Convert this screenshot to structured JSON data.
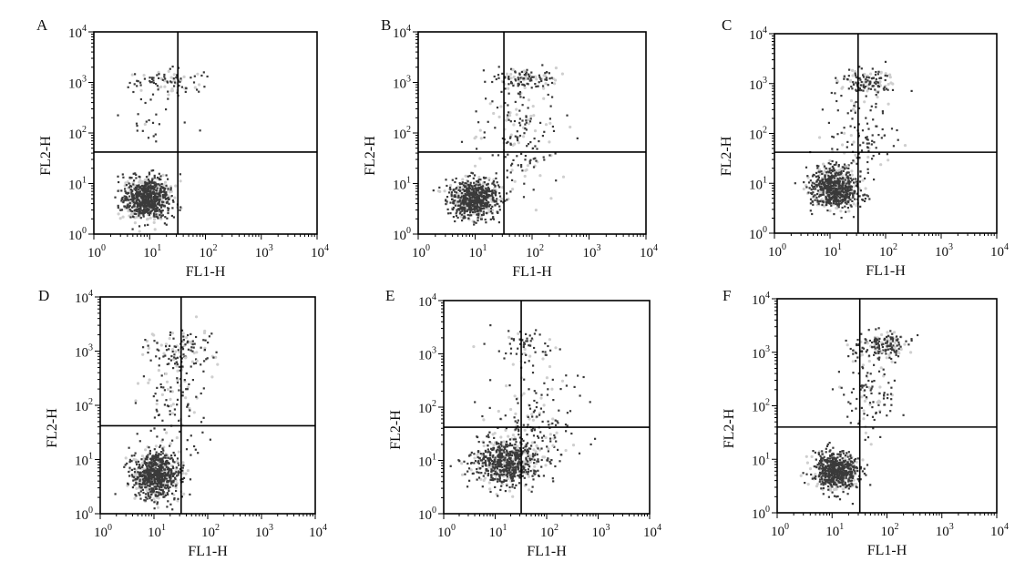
{
  "chart_data": [
    {
      "panel": "A",
      "type": "scatter",
      "xlabel": "FL1-H",
      "ylabel": "FL2-H",
      "xscale": "log",
      "yscale": "log",
      "xlim": [
        1,
        10000
      ],
      "ylim": [
        1,
        10000
      ],
      "quadrant_gate": {
        "x": 32,
        "y": 42
      },
      "x_ticks": [
        "10^0",
        "10^1",
        "10^2",
        "10^3",
        "10^4"
      ],
      "y_ticks": [
        "10^0",
        "10^1",
        "10^2",
        "10^3",
        "10^4"
      ],
      "clusters": [
        {
          "cx": 9,
          "cy": 5,
          "sx": 0.22,
          "sy": 0.2,
          "n": 900
        },
        {
          "cx": 22,
          "cy": 1000,
          "sx": 0.35,
          "sy": 0.12,
          "n": 90
        },
        {
          "cx": 12,
          "cy": 150,
          "sx": 0.25,
          "sy": 0.35,
          "n": 25
        }
      ]
    },
    {
      "panel": "B",
      "type": "scatter",
      "xlabel": "FL1-H",
      "ylabel": "FL2-H",
      "xscale": "log",
      "yscale": "log",
      "xlim": [
        1,
        10000
      ],
      "ylim": [
        1,
        10000
      ],
      "quadrant_gate": {
        "x": 32,
        "y": 42
      },
      "x_ticks": [
        "10^0",
        "10^1",
        "10^2",
        "10^3",
        "10^4"
      ],
      "y_ticks": [
        "10^0",
        "10^1",
        "10^2",
        "10^3",
        "10^4"
      ],
      "clusters": [
        {
          "cx": 10,
          "cy": 5,
          "sx": 0.22,
          "sy": 0.2,
          "n": 750
        },
        {
          "cx": 80,
          "cy": 1200,
          "sx": 0.3,
          "sy": 0.12,
          "n": 120
        },
        {
          "cx": 60,
          "cy": 80,
          "sx": 0.35,
          "sy": 0.55,
          "n": 170
        }
      ]
    },
    {
      "panel": "C",
      "type": "scatter",
      "xlabel": "FL1-H",
      "ylabel": "FL2-H",
      "xscale": "log",
      "yscale": "log",
      "xlim": [
        1,
        10000
      ],
      "ylim": [
        1,
        10000
      ],
      "quadrant_gate": {
        "x": 32,
        "y": 42
      },
      "x_ticks": [
        "10^0",
        "10^1",
        "10^2",
        "10^3",
        "10^4"
      ],
      "y_ticks": [
        "10^0",
        "10^1",
        "10^2",
        "10^3",
        "10^4"
      ],
      "clusters": [
        {
          "cx": 12,
          "cy": 8,
          "sx": 0.22,
          "sy": 0.22,
          "n": 750
        },
        {
          "cx": 50,
          "cy": 1100,
          "sx": 0.25,
          "sy": 0.13,
          "n": 130
        },
        {
          "cx": 35,
          "cy": 100,
          "sx": 0.3,
          "sy": 0.5,
          "n": 120
        }
      ]
    },
    {
      "panel": "D",
      "type": "scatter",
      "xlabel": "FL1-H",
      "ylabel": "FL2-H",
      "xscale": "log",
      "yscale": "log",
      "xlim": [
        1,
        10000
      ],
      "ylim": [
        1,
        10000
      ],
      "quadrant_gate": {
        "x": 32,
        "y": 42
      },
      "x_ticks": [
        "10^0",
        "10^1",
        "10^2",
        "10^3",
        "10^4"
      ],
      "y_ticks": [
        "10^0",
        "10^1",
        "10^2",
        "10^3",
        "10^4"
      ],
      "clusters": [
        {
          "cx": 11,
          "cy": 5,
          "sx": 0.22,
          "sy": 0.22,
          "n": 850
        },
        {
          "cx": 30,
          "cy": 1000,
          "sx": 0.3,
          "sy": 0.2,
          "n": 120
        },
        {
          "cx": 25,
          "cy": 120,
          "sx": 0.3,
          "sy": 0.5,
          "n": 120
        }
      ]
    },
    {
      "panel": "E",
      "type": "scatter",
      "xlabel": "FL1-H",
      "ylabel": "FL2-H",
      "xscale": "log",
      "yscale": "log",
      "xlim": [
        1,
        10000
      ],
      "ylim": [
        1,
        10000
      ],
      "quadrant_gate": {
        "x": 32,
        "y": 42
      },
      "x_ticks": [
        "10^0",
        "10^1",
        "10^2",
        "10^3",
        "10^4"
      ],
      "y_ticks": [
        "10^0",
        "10^1",
        "10^2",
        "10^3",
        "10^4"
      ],
      "clusters": [
        {
          "cx": 18,
          "cy": 9,
          "sx": 0.32,
          "sy": 0.22,
          "n": 750
        },
        {
          "cx": 35,
          "cy": 1500,
          "sx": 0.35,
          "sy": 0.15,
          "n": 60
        },
        {
          "cx": 60,
          "cy": 60,
          "sx": 0.45,
          "sy": 0.5,
          "n": 170
        }
      ]
    },
    {
      "panel": "F",
      "type": "scatter",
      "xlabel": "FL1-H",
      "ylabel": "FL2-H",
      "xscale": "log",
      "yscale": "log",
      "xlim": [
        1,
        10000
      ],
      "ylim": [
        1,
        10000
      ],
      "quadrant_gate": {
        "x": 32,
        "y": 40
      },
      "x_ticks": [
        "10^0",
        "10^1",
        "10^2",
        "10^3",
        "10^4"
      ],
      "y_ticks": [
        "10^0",
        "10^1",
        "10^2",
        "10^3",
        "10^4"
      ],
      "clusters": [
        {
          "cx": 12,
          "cy": 6,
          "sx": 0.2,
          "sy": 0.18,
          "n": 750
        },
        {
          "cx": 80,
          "cy": 1300,
          "sx": 0.25,
          "sy": 0.13,
          "n": 180
        },
        {
          "cx": 50,
          "cy": 150,
          "sx": 0.25,
          "sy": 0.45,
          "n": 110
        }
      ]
    }
  ]
}
